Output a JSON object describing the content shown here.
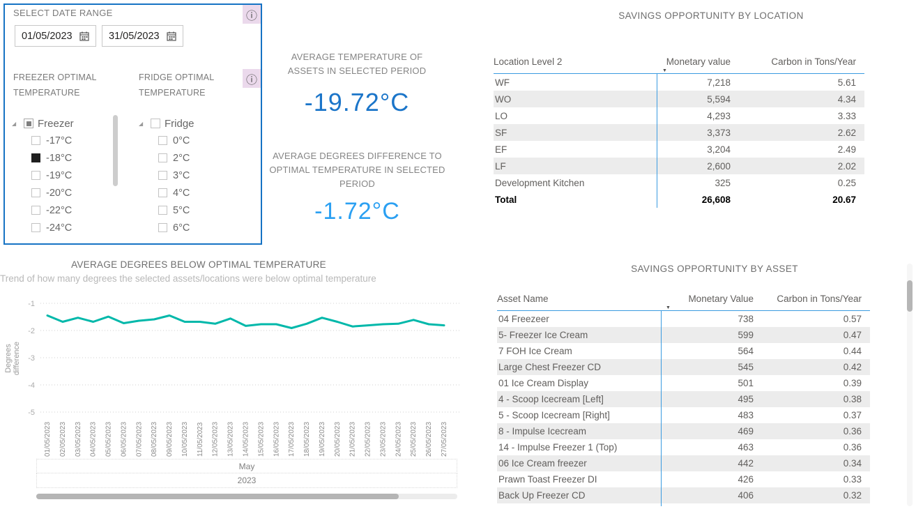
{
  "icons": {
    "info": "ⓘ",
    "expand_arrow": "◢",
    "sort_desc": "▼"
  },
  "colors": {
    "panel_border_blue": "#1673C4",
    "kpi_value_1": "#1B75C9",
    "kpi_value_2": "#2BA0F2",
    "table_line_blue": "#3A9BE0",
    "trend_line_teal": "#01B8AA",
    "info_badge_bg": "#EBD9EC",
    "alt_row_gray": "#ececec"
  },
  "slicer_panel": {
    "title": "SELECT DATE RANGE",
    "date_from": "01/05/2023",
    "date_to": "31/05/2023",
    "freezer": {
      "label": "FREEZER OPTIMAL TEMPERATURE",
      "parent": "Freezer",
      "parent_state": "indeterminate",
      "items": [
        {
          "label": "-17°C",
          "checked": false
        },
        {
          "label": "-18°C",
          "checked": true
        },
        {
          "label": "-19°C",
          "checked": false
        },
        {
          "label": "-20°C",
          "checked": false
        },
        {
          "label": "-22°C",
          "checked": false
        },
        {
          "label": "-24°C",
          "checked": false
        }
      ]
    },
    "fridge": {
      "label": "FRIDGE OPTIMAL TEMPERATURE",
      "parent": "Fridge",
      "parent_state": "unchecked",
      "items": [
        {
          "label": "0°C",
          "checked": false
        },
        {
          "label": "2°C",
          "checked": false
        },
        {
          "label": "3°C",
          "checked": false
        },
        {
          "label": "4°C",
          "checked": false
        },
        {
          "label": "5°C",
          "checked": false
        },
        {
          "label": "6°C",
          "checked": false
        }
      ]
    }
  },
  "kpis": [
    {
      "label": "AVERAGE TEMPERATURE OF ASSETS IN SELECTED PERIOD",
      "value": "-19.72°C"
    },
    {
      "label": "AVERAGE DEGREES DIFFERENCE TO OPTIMAL TEMPERATURE IN SELECTED PERIOD",
      "value": "-1.72°C"
    }
  ],
  "location_table": {
    "title": "SAVINGS OPPORTUNITY BY LOCATION",
    "columns": [
      "Location Level 2",
      "Monetary value",
      "Carbon in Tons/Year"
    ],
    "sort_column": "Monetary value",
    "sort_direction": "desc",
    "rows": [
      [
        "WF",
        "7,218",
        "5.61"
      ],
      [
        "WO",
        "5,594",
        "4.34"
      ],
      [
        "LO",
        "4,293",
        "3.33"
      ],
      [
        "SF",
        "3,373",
        "2.62"
      ],
      [
        "EF",
        "3,204",
        "2.49"
      ],
      [
        "LF",
        "2,600",
        "2.02"
      ],
      [
        "Development Kitchen",
        "325",
        "0.25"
      ]
    ],
    "total": [
      "Total",
      "26,608",
      "20.67"
    ]
  },
  "asset_table": {
    "title": "SAVINGS OPPORTUNITY BY ASSET",
    "columns": [
      "Asset Name",
      "Monetary Value",
      "Carbon in Tons/Year"
    ],
    "sort_column": "Monetary Value",
    "sort_direction": "desc",
    "rows": [
      [
        "04 Freezeer",
        "738",
        "0.57"
      ],
      [
        "5- Freezer Ice Cream",
        "599",
        "0.47"
      ],
      [
        "7 FOH Ice Cream",
        "564",
        "0.44"
      ],
      [
        "Large Chest Freezer CD",
        "545",
        "0.42"
      ],
      [
        "01 Ice Cream Display",
        "501",
        "0.39"
      ],
      [
        "4 - Scoop Icecream [Left]",
        "495",
        "0.38"
      ],
      [
        "5 - Scoop Icecream [Right]",
        "483",
        "0.37"
      ],
      [
        "8 - Impulse Icecream",
        "469",
        "0.36"
      ],
      [
        "14 - Impulse Freezer 1 (Top)",
        "463",
        "0.36"
      ],
      [
        "06 Ice Cream freezer",
        "442",
        "0.34"
      ],
      [
        "Prawn Toast Freezer DI",
        "426",
        "0.33"
      ],
      [
        "Back Up Freezer CD",
        "406",
        "0.32"
      ]
    ]
  },
  "chart_data": {
    "type": "line",
    "title": "AVERAGE DEGREES BELOW OPTIMAL TEMPERATURE",
    "subtitle": "Trend of how many degrees the selected assets/locations were below optimal temperature",
    "ylabel": "Degrees difference",
    "x": [
      "01/05/2023",
      "02/05/2023",
      "03/05/2023",
      "04/05/2023",
      "05/05/2023",
      "06/05/2023",
      "07/05/2023",
      "08/05/2023",
      "09/05/2023",
      "10/05/2023",
      "11/05/2023",
      "12/05/2023",
      "13/05/2023",
      "14/05/2023",
      "15/05/2023",
      "16/05/2023",
      "17/05/2023",
      "18/05/2023",
      "19/05/2023",
      "20/05/2023",
      "21/05/2023",
      "22/05/2023",
      "23/05/2023",
      "24/05/2023",
      "25/05/2023",
      "26/05/2023",
      "27/05/2023"
    ],
    "values": [
      -1.45,
      -1.68,
      -1.53,
      -1.68,
      -1.49,
      -1.73,
      -1.64,
      -1.59,
      -1.45,
      -1.68,
      -1.68,
      -1.75,
      -1.56,
      -1.83,
      -1.77,
      -1.77,
      -1.91,
      -1.75,
      -1.53,
      -1.68,
      -1.85,
      -1.81,
      -1.77,
      -1.75,
      -1.61,
      -1.77,
      -1.81
    ],
    "ylim": [
      -5,
      -1
    ],
    "yticks": [
      -1,
      -2,
      -3,
      -4,
      -5
    ],
    "grid": "dotted",
    "legend": "none",
    "x_group_labels": [
      "May",
      "2023"
    ]
  }
}
